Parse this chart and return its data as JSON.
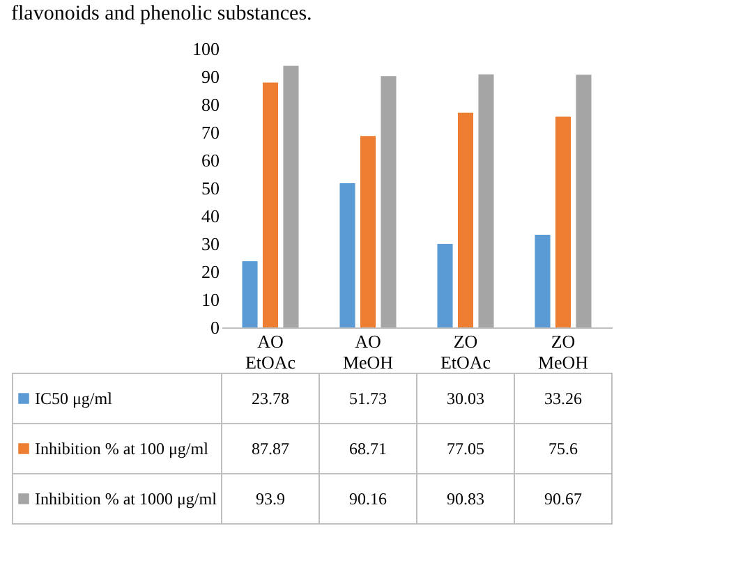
{
  "chart_data": {
    "type": "bar",
    "annotations": [
      "flavonoids and phenolic substances."
    ],
    "categories": [
      "AO EtOAc",
      "AO MeOH",
      "ZO EtOAc",
      "ZO MeOH"
    ],
    "series": [
      {
        "name": "IC50 μg/ml",
        "color": "#5b9bd5",
        "values": [
          23.78,
          51.73,
          30.03,
          33.26
        ]
      },
      {
        "name": "Inhibition % at 100 μg/ml",
        "color": "#ed7d31",
        "values": [
          87.87,
          68.71,
          77.05,
          75.6
        ]
      },
      {
        "name": "Inhibition % at 1000 μg/ml",
        "color": "#a5a5a5",
        "values": [
          93.9,
          90.16,
          90.83,
          90.67
        ]
      }
    ],
    "ylim": [
      0,
      100
    ],
    "yticks": [
      0,
      10,
      20,
      30,
      40,
      50,
      60,
      70,
      80,
      90,
      100
    ],
    "data_labels": true,
    "legend": "bottom"
  }
}
